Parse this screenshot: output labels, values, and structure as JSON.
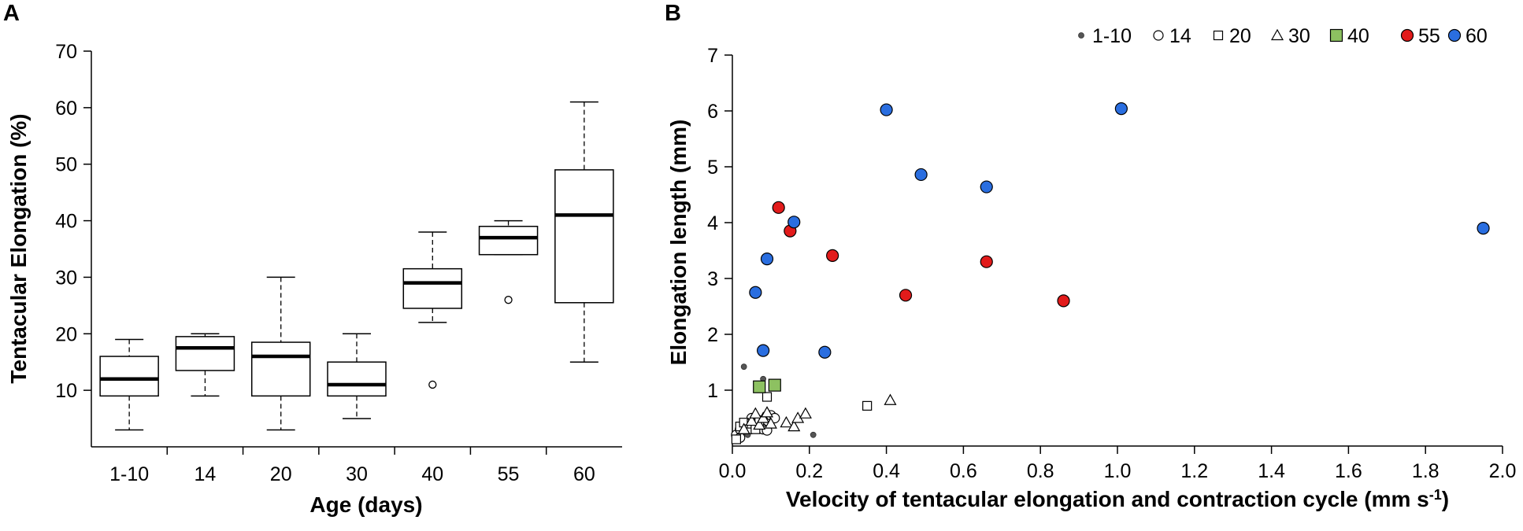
{
  "figure": {
    "panel_a_letter": "A",
    "panel_b_letter": "B"
  },
  "chart_data": [
    {
      "type": "box",
      "panel": "A",
      "title": "",
      "xlabel": "Age (days)",
      "ylabel": "Tentacular Elongation (%)",
      "ylim": [
        0,
        70
      ],
      "yticks": [
        "10",
        "20",
        "30",
        "40",
        "50",
        "60",
        "70"
      ],
      "grid": false,
      "categories": [
        "1-10",
        "14",
        "20",
        "30",
        "40",
        "55",
        "60"
      ],
      "boxes": [
        {
          "category": "1-10",
          "whisker_low": 3,
          "q1": 9,
          "median": 12,
          "q3": 16,
          "whisker_high": 19,
          "outliers": []
        },
        {
          "category": "14",
          "whisker_low": 9,
          "q1": 13.5,
          "median": 17.5,
          "q3": 19.5,
          "whisker_high": 20,
          "outliers": []
        },
        {
          "category": "20",
          "whisker_low": 3,
          "q1": 9,
          "median": 16,
          "q3": 18.5,
          "whisker_high": 30,
          "outliers": []
        },
        {
          "category": "30",
          "whisker_low": 5,
          "q1": 9,
          "median": 11,
          "q3": 15,
          "whisker_high": 20,
          "outliers": []
        },
        {
          "category": "40",
          "whisker_low": 22,
          "q1": 24.5,
          "median": 29,
          "q3": 31.5,
          "whisker_high": 38,
          "outliers": [
            11
          ]
        },
        {
          "category": "55",
          "whisker_low": 34,
          "q1": 34,
          "median": 37,
          "q3": 39,
          "whisker_high": 40,
          "outliers": [
            26
          ]
        },
        {
          "category": "60",
          "whisker_low": 15,
          "q1": 25.5,
          "median": 41,
          "q3": 49,
          "whisker_high": 61,
          "outliers": []
        }
      ]
    },
    {
      "type": "scatter",
      "panel": "B",
      "title": "",
      "xlabel": "Velocity of tentacular elongation and contraction cycle (mm s",
      "xlabel_sup": "-1",
      "xlabel_end": ")",
      "ylabel": "Elongation length (mm)",
      "xlim": [
        0,
        2.0
      ],
      "ylim": [
        0,
        7
      ],
      "xticks": [
        "0.0",
        "0.2",
        "0.4",
        "0.6",
        "0.8",
        "1.0",
        "1.2",
        "1.4",
        "1.6",
        "1.8",
        "2.0"
      ],
      "yticks": [
        "1",
        "2",
        "3",
        "4",
        "5",
        "6",
        "7"
      ],
      "grid": false,
      "legend_position": "top-right",
      "series": [
        {
          "name": "1-10",
          "marker": "small-dot",
          "color": "#555555",
          "points": [
            [
              0.01,
              0.15
            ],
            [
              0.01,
              0.22
            ],
            [
              0.02,
              0.18
            ],
            [
              0.02,
              0.3
            ],
            [
              0.03,
              0.25
            ],
            [
              0.03,
              0.4
            ],
            [
              0.04,
              0.2
            ],
            [
              0.04,
              0.35
            ],
            [
              0.05,
              0.45
            ],
            [
              0.06,
              0.3
            ],
            [
              0.07,
              0.5
            ],
            [
              0.08,
              0.35
            ],
            [
              0.09,
              0.28
            ],
            [
              0.03,
              1.42
            ],
            [
              0.08,
              1.2
            ],
            [
              0.21,
              0.2
            ]
          ]
        },
        {
          "name": "14",
          "marker": "open-circle",
          "color": "#ffffff",
          "points": [
            [
              0.01,
              0.2
            ],
            [
              0.02,
              0.15
            ],
            [
              0.02,
              0.3
            ],
            [
              0.03,
              0.4
            ],
            [
              0.04,
              0.35
            ],
            [
              0.05,
              0.5
            ],
            [
              0.06,
              0.4
            ],
            [
              0.08,
              0.3
            ],
            [
              0.09,
              0.28
            ],
            [
              0.1,
              0.55
            ],
            [
              0.11,
              0.5
            ]
          ]
        },
        {
          "name": "20",
          "marker": "open-square",
          "color": "#ffffff",
          "points": [
            [
              0.01,
              0.12
            ],
            [
              0.02,
              0.35
            ],
            [
              0.03,
              0.42
            ],
            [
              0.04,
              0.3
            ],
            [
              0.05,
              0.4
            ],
            [
              0.06,
              0.3
            ],
            [
              0.07,
              0.45
            ],
            [
              0.09,
              0.88
            ],
            [
              0.35,
              0.72
            ]
          ]
        },
        {
          "name": "30",
          "marker": "open-triangle",
          "color": "#ffffff",
          "points": [
            [
              0.03,
              0.3
            ],
            [
              0.05,
              0.45
            ],
            [
              0.06,
              0.58
            ],
            [
              0.07,
              0.38
            ],
            [
              0.08,
              0.5
            ],
            [
              0.09,
              0.6
            ],
            [
              0.1,
              0.4
            ],
            [
              0.14,
              0.42
            ],
            [
              0.16,
              0.35
            ],
            [
              0.17,
              0.5
            ],
            [
              0.19,
              0.58
            ],
            [
              0.41,
              0.82
            ]
          ]
        },
        {
          "name": "40",
          "marker": "square",
          "color": "#8dc161",
          "points": [
            [
              0.07,
              1.06
            ],
            [
              0.11,
              1.09
            ]
          ]
        },
        {
          "name": "55",
          "marker": "circle",
          "color": "#e21b1b",
          "points": [
            [
              0.12,
              4.27
            ],
            [
              0.15,
              3.85
            ],
            [
              0.26,
              3.41
            ],
            [
              0.45,
              2.7
            ],
            [
              0.66,
              3.3
            ],
            [
              0.86,
              2.6
            ]
          ]
        },
        {
          "name": "60",
          "marker": "circle",
          "color": "#2a6ee0",
          "points": [
            [
              0.06,
              2.75
            ],
            [
              0.08,
              1.71
            ],
            [
              0.09,
              3.35
            ],
            [
              0.16,
              4.01
            ],
            [
              0.24,
              1.68
            ],
            [
              0.4,
              6.02
            ],
            [
              0.49,
              4.86
            ],
            [
              0.66,
              4.64
            ],
            [
              1.01,
              6.04
            ],
            [
              1.95,
              3.9
            ]
          ]
        }
      ]
    }
  ]
}
